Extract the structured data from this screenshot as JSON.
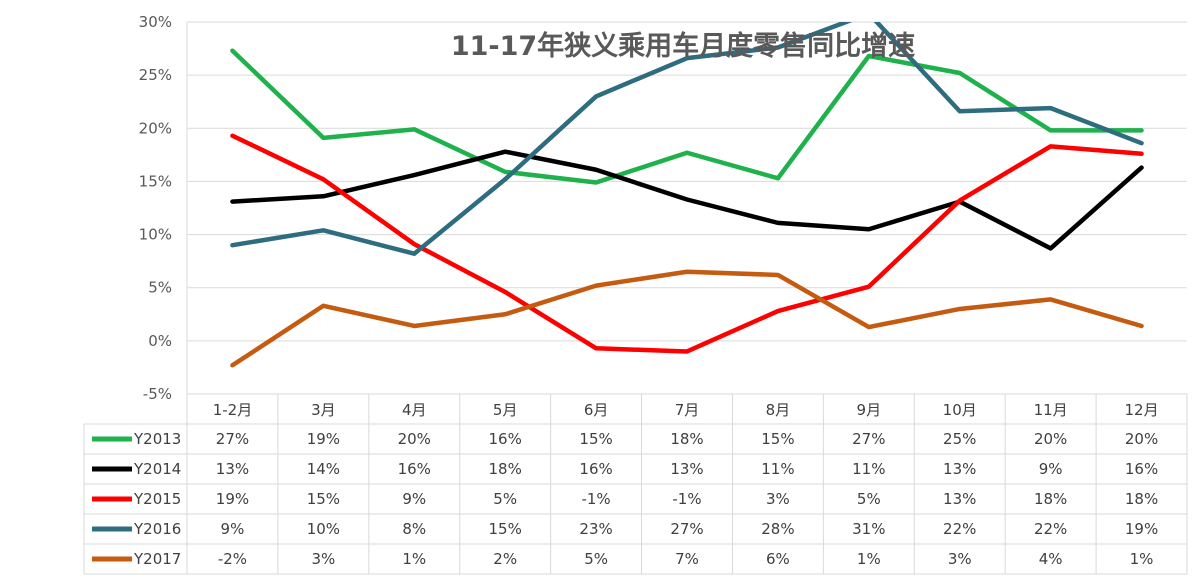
{
  "chart_data": {
    "type": "line",
    "title": "11-17年狭义乘用车月度零售同比增速",
    "categories": [
      "1-2月",
      "3月",
      "4月",
      "5月",
      "6月",
      "7月",
      "8月",
      "9月",
      "10月",
      "11月",
      "12月"
    ],
    "ylim": [
      -5,
      30
    ],
    "yticks": [
      "30%",
      "25%",
      "20%",
      "15%",
      "10%",
      "5%",
      "0%",
      "-5%"
    ],
    "grid": true,
    "legend": "data-table-left",
    "series": [
      {
        "name": "Y2013",
        "color": "#1FB14B",
        "values": [
          27.3,
          19.1,
          19.9,
          15.9,
          14.9,
          17.7,
          15.3,
          26.8,
          25.2,
          19.8,
          19.8
        ],
        "labels": [
          "27%",
          "19%",
          "20%",
          "16%",
          "15%",
          "18%",
          "15%",
          "27%",
          "25%",
          "20%",
          "20%"
        ]
      },
      {
        "name": "Y2014",
        "color": "#000000",
        "values": [
          13.1,
          13.6,
          15.6,
          17.8,
          16.1,
          13.3,
          11.1,
          10.5,
          13.1,
          8.7,
          16.3
        ],
        "labels": [
          "13%",
          "14%",
          "16%",
          "18%",
          "16%",
          "13%",
          "11%",
          "11%",
          "13%",
          "9%",
          "16%"
        ]
      },
      {
        "name": "Y2015",
        "color": "#FF0000",
        "values": [
          19.3,
          15.2,
          9.1,
          4.6,
          -0.7,
          -1.0,
          2.8,
          5.1,
          13.2,
          18.3,
          17.6
        ],
        "labels": [
          "19%",
          "15%",
          "9%",
          "5%",
          "-1%",
          "-1%",
          "3%",
          "5%",
          "13%",
          "18%",
          "18%"
        ]
      },
      {
        "name": "Y2016",
        "color": "#2E6C80",
        "values": [
          9.0,
          10.4,
          8.2,
          15.2,
          23.0,
          26.6,
          27.6,
          30.8,
          21.6,
          21.9,
          18.6
        ],
        "labels": [
          "9%",
          "10%",
          "8%",
          "15%",
          "23%",
          "27%",
          "28%",
          "31%",
          "22%",
          "22%",
          "19%"
        ]
      },
      {
        "name": "Y2017",
        "color": "#C55A11",
        "values": [
          -2.3,
          3.3,
          1.4,
          2.5,
          5.2,
          6.5,
          6.2,
          1.3,
          3.0,
          3.9,
          1.4
        ],
        "labels": [
          "-2%",
          "3%",
          "1%",
          "2%",
          "5%",
          "7%",
          "6%",
          "1%",
          "3%",
          "4%",
          "1%"
        ]
      }
    ]
  }
}
